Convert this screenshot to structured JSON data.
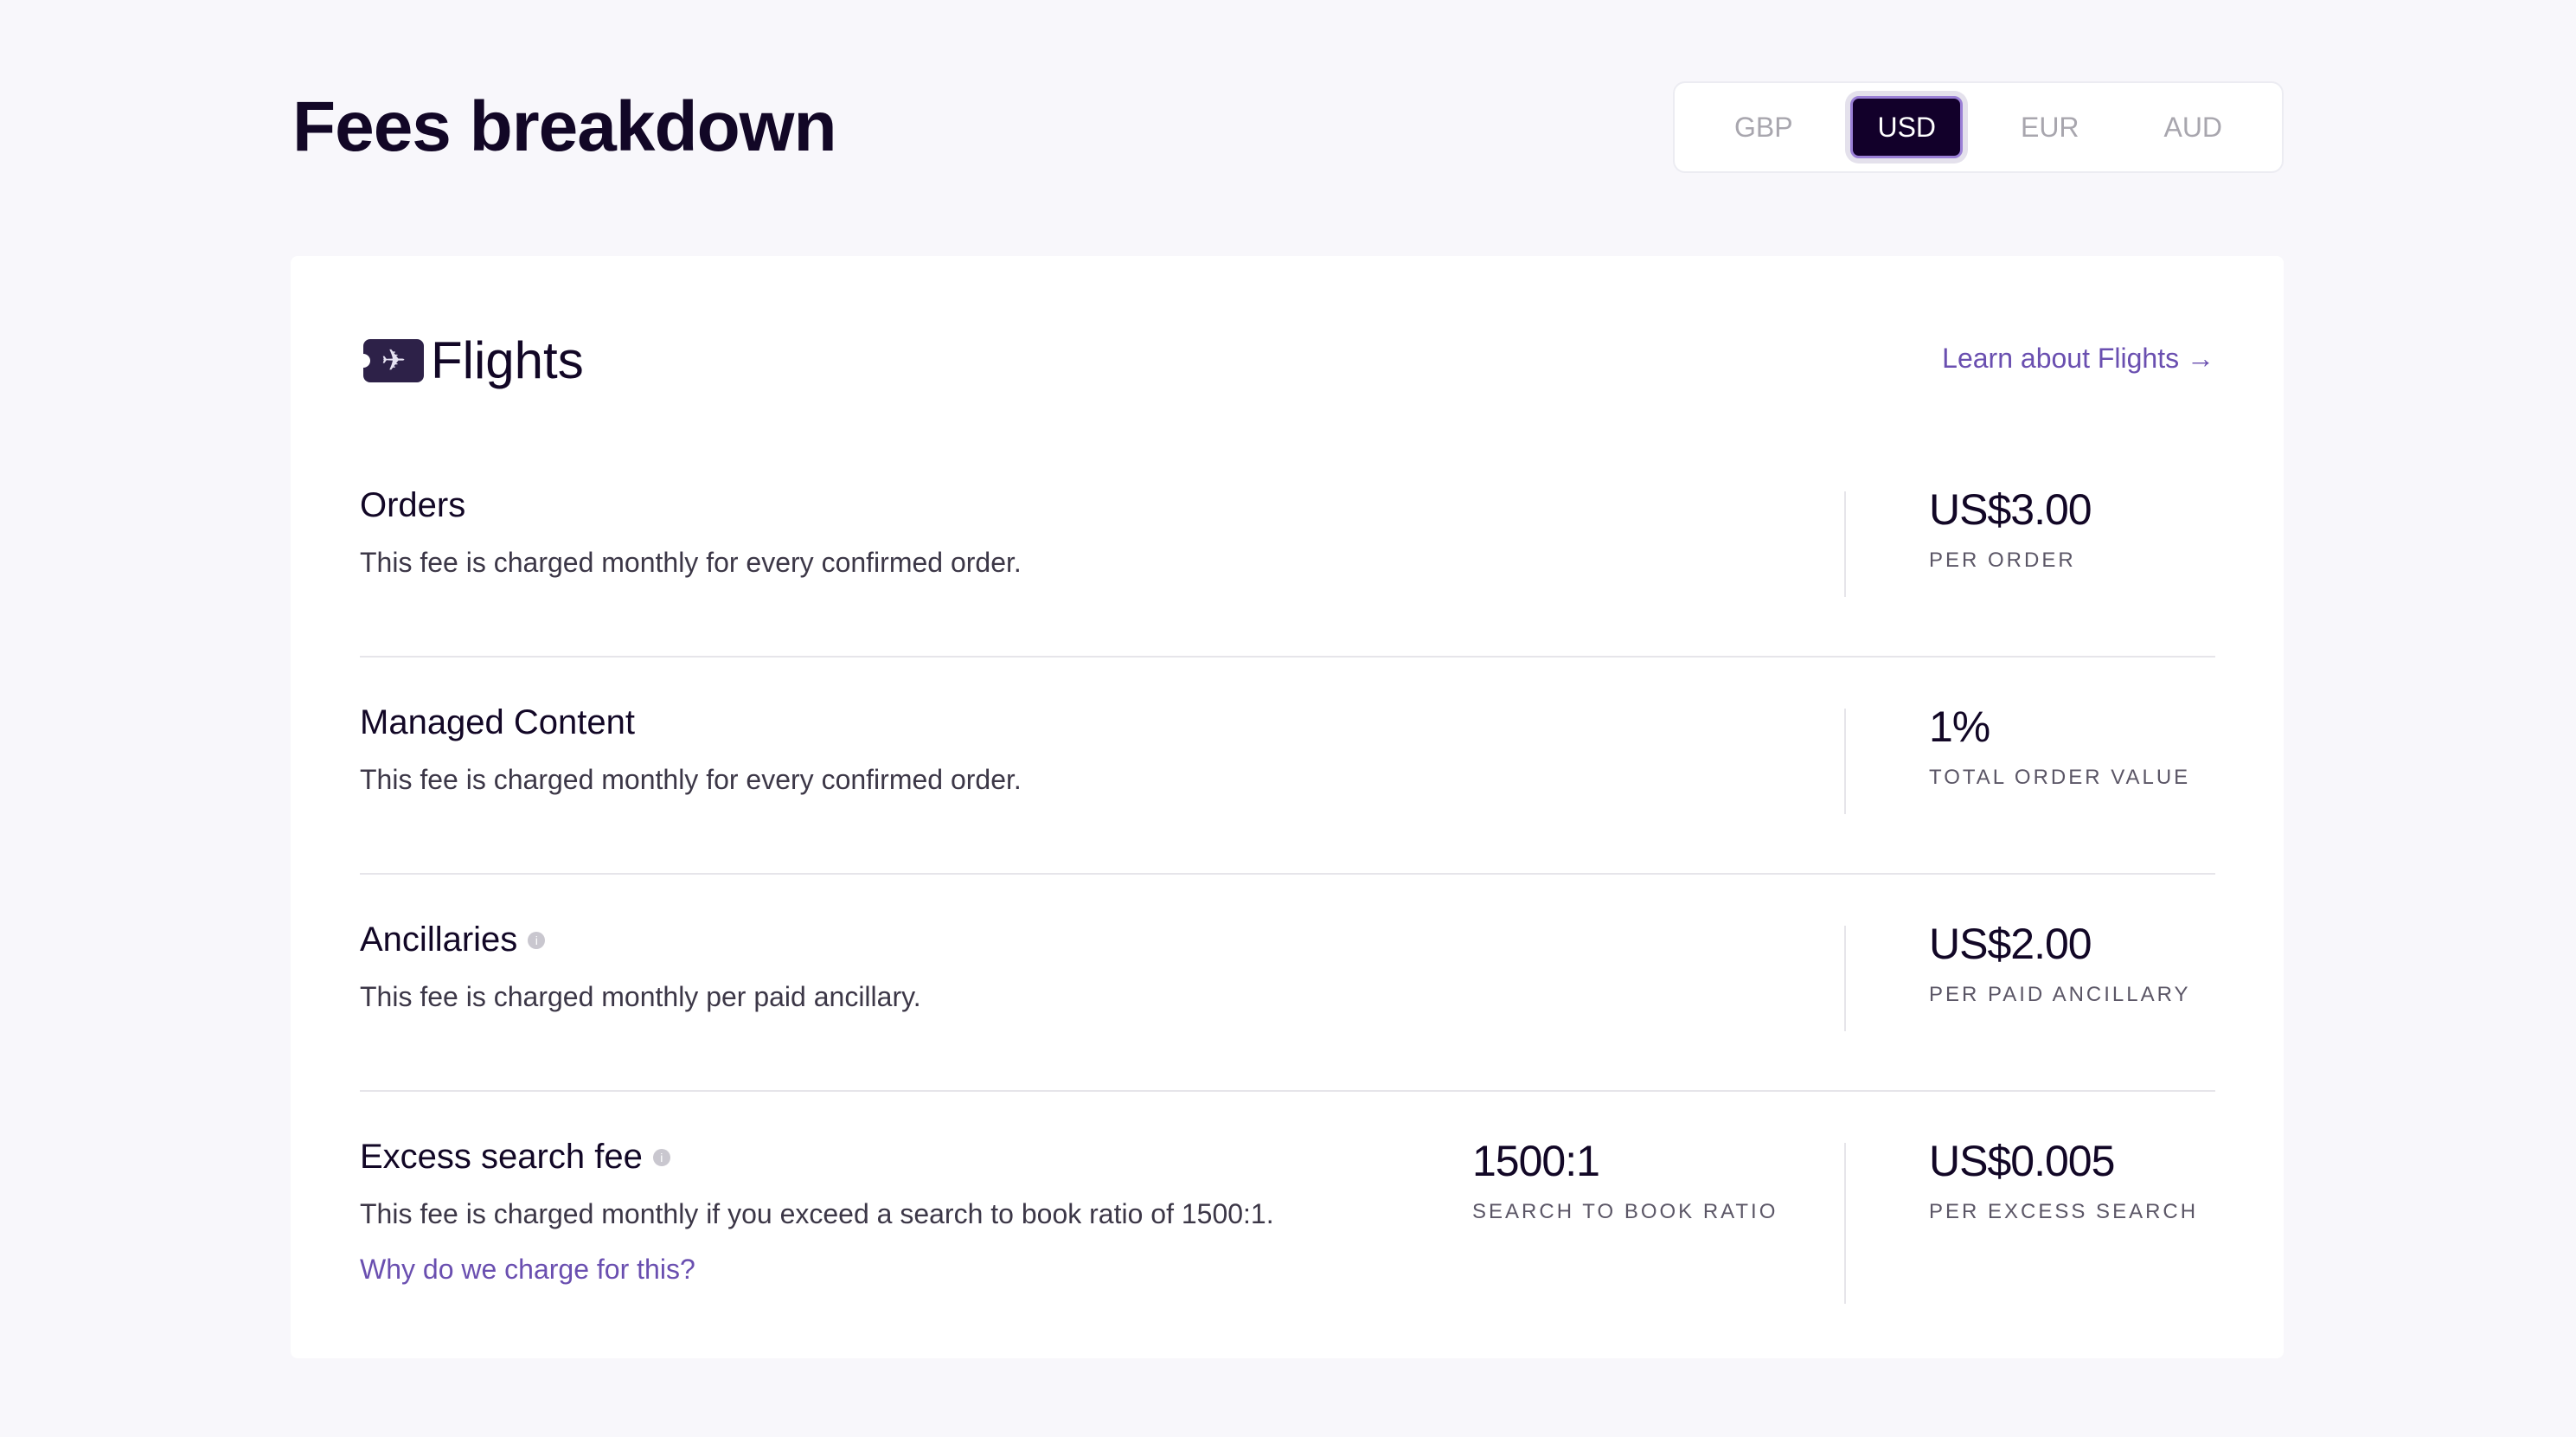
{
  "page_title": "Fees breakdown",
  "currencies": {
    "options": [
      "GBP",
      "USD",
      "EUR",
      "AUD"
    ],
    "selected": "USD"
  },
  "section": {
    "title": "Flights",
    "icon": "plane-ticket-icon",
    "learn_link": "Learn about Flights",
    "learn_arrow": "→"
  },
  "rows": [
    {
      "title": "Orders",
      "desc": "This fee is charged monthly for every confirmed order.",
      "value": "US$3.00",
      "unit": "PER ORDER"
    },
    {
      "title": "Managed Content",
      "desc": "This fee is charged monthly for every confirmed order.",
      "value": "1%",
      "unit": "TOTAL ORDER VALUE"
    },
    {
      "title": "Ancillaries",
      "info": true,
      "desc": "This fee is charged monthly per paid ancillary.",
      "value": "US$2.00",
      "unit": "PER PAID ANCILLARY"
    },
    {
      "title": "Excess search fee",
      "info": true,
      "desc": "This fee is charged monthly if you exceed a search to book ratio of 1500:1.",
      "link": "Why do we charge for this?",
      "ratio": "1500:1",
      "ratio_unit": "SEARCH TO BOOK RATIO",
      "value": "US$0.005",
      "unit": "PER EXCESS SEARCH"
    }
  ],
  "colors": {
    "accent": "#6a4fb0",
    "dark": "#12002a",
    "background": "#f8f7fb"
  }
}
